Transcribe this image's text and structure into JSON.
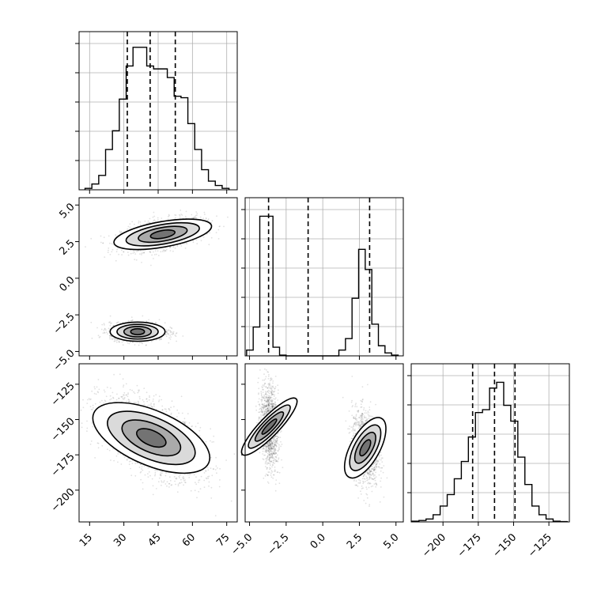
{
  "chart_data": {
    "type": "corner",
    "parameters": [
      {
        "ticks": [
          15,
          30,
          45,
          60,
          75
        ],
        "tick_labels": [
          "15",
          "30",
          "45",
          "60",
          "75"
        ],
        "range": [
          10.4,
          79.6
        ]
      },
      {
        "ticks": [
          5.0,
          2.5,
          0.0,
          -2.5,
          -5.0
        ],
        "tick_labels": [
          "5.0",
          "2.5",
          "0.0",
          "−2.5",
          "−5.0"
        ],
        "range": [
          -5.3,
          5.5
        ]
      },
      {
        "ticks": [
          -125,
          -150,
          -175,
          -200
        ],
        "tick_labels": [
          "−125",
          "−150",
          "−175",
          "−200"
        ],
        "range": [
          -222.5,
          -110.5
        ]
      }
    ],
    "x_tick_labels_bottom": [
      {
        "ticks": [
          15,
          30,
          45,
          60,
          75
        ],
        "labels": [
          "15",
          "30",
          "45",
          "60",
          "75"
        ]
      },
      {
        "ticks": [
          -5.0,
          -2.5,
          0.0,
          2.5,
          5.0
        ],
        "labels": [
          "−5.0",
          "−2.5",
          "0.0",
          "2.5",
          "5.0"
        ]
      },
      {
        "ticks": [
          -200,
          -175,
          -150,
          -125
        ],
        "labels": [
          "−200",
          "−175",
          "−150",
          "−125"
        ]
      }
    ],
    "quantiles": [
      [
        31.5,
        41.5,
        52.5
      ],
      [
        -3.7,
        -1.0,
        3.2
      ],
      [
        -179,
        -163.5,
        -149
      ]
    ],
    "histograms": [
      {
        "edges": [
          13,
          16,
          19,
          22,
          25,
          28,
          31,
          34,
          37,
          40,
          43,
          46,
          49,
          52,
          55,
          58,
          61,
          64,
          67,
          70,
          73,
          76
        ],
        "counts": [
          0.01,
          0.04,
          0.1,
          0.28,
          0.41,
          0.63,
          0.86,
          0.99,
          0.99,
          0.86,
          0.84,
          0.84,
          0.78,
          0.65,
          0.64,
          0.46,
          0.28,
          0.14,
          0.06,
          0.03,
          0.01
        ]
      },
      {
        "edges": [
          -5.2,
          -4.75,
          -4.3,
          -3.85,
          -3.4,
          -2.95,
          -2.5,
          -2.05,
          -1.6,
          1.1,
          1.55,
          2.0,
          2.45,
          2.9,
          3.35,
          3.8,
          4.25,
          4.7,
          5.15
        ],
        "counts": [
          0.04,
          0.2,
          0.97,
          0.97,
          0.06,
          0.005,
          0,
          0,
          0,
          0.04,
          0.12,
          0.4,
          0.74,
          0.6,
          0.22,
          0.07,
          0.02,
          0.005
        ]
      },
      {
        "edges": [
          -222,
          -217,
          -212,
          -207,
          -202,
          -197,
          -192,
          -187,
          -182,
          -177,
          -172,
          -167,
          -162,
          -157,
          -152,
          -147,
          -142,
          -137,
          -132,
          -127,
          -122,
          -117,
          -112
        ],
        "counts": [
          0.005,
          0.01,
          0.02,
          0.05,
          0.11,
          0.19,
          0.3,
          0.42,
          0.59,
          0.76,
          0.78,
          0.93,
          0.97,
          0.81,
          0.7,
          0.45,
          0.26,
          0.11,
          0.05,
          0.02,
          0.005,
          0.002
        ]
      }
    ],
    "clusters_2d": [
      {
        "x": 0,
        "y": 1,
        "mean": [
          47,
          3.0
        ],
        "sd": [
          9,
          0.55
        ],
        "rho": 0.45,
        "n": 1500
      },
      {
        "x": 0,
        "y": 1,
        "mean": [
          36,
          -3.65
        ],
        "sd": [
          6,
          0.3
        ],
        "rho": 0.0,
        "n": 1500
      },
      {
        "x": 0,
        "y": 2,
        "mean": [
          42,
          -163
        ],
        "sd": [
          11,
          14
        ],
        "rho": -0.55,
        "n": 2600
      },
      {
        "x": 1,
        "y": 2,
        "mean": [
          -3.65,
          -155
        ],
        "sd": [
          0.3,
          15
        ],
        "rho": -0.2,
        "n": 1300
      },
      {
        "x": 1,
        "y": 2,
        "mean": [
          2.9,
          -170
        ],
        "sd": [
          0.45,
          13
        ],
        "rho": -0.2,
        "n": 1300
      }
    ],
    "grid": true,
    "colors": {
      "axis": "#000000",
      "grid": "#b0b0b0",
      "points": "#000000"
    }
  }
}
